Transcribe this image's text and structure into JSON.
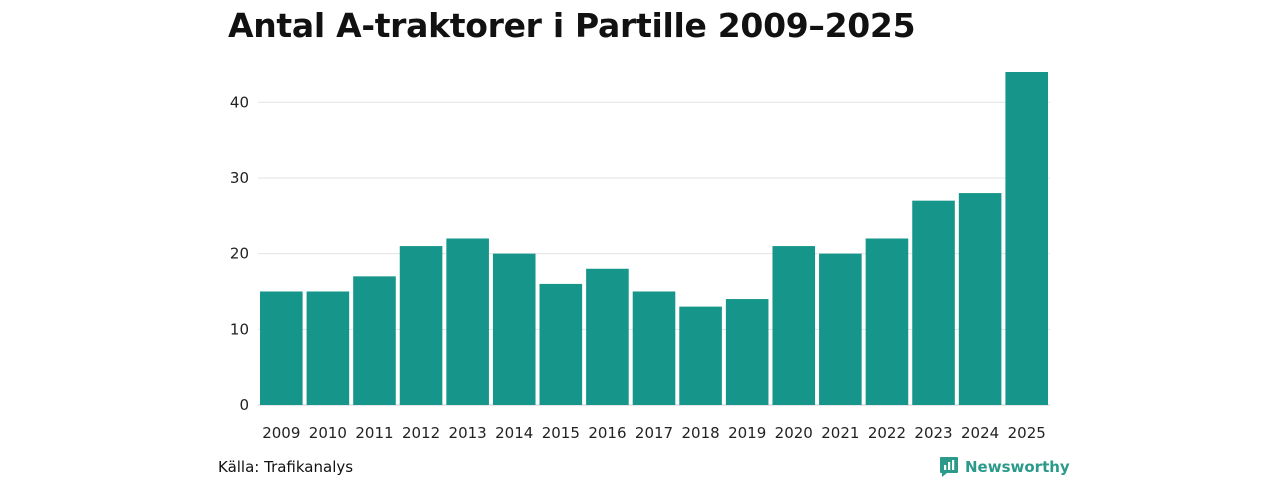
{
  "title": "Antal A-traktorer i Partille 2009–2025",
  "source": "Källa: Trafikanalys",
  "brand": {
    "name": "Newsworthy",
    "icon": "newsworthy-logo-icon",
    "color": "#2b9a8a"
  },
  "chart_data": {
    "type": "bar",
    "title": "Antal A-traktorer i Partille 2009–2025",
    "xlabel": "",
    "ylabel": "",
    "categories": [
      "2009",
      "2010",
      "2011",
      "2012",
      "2013",
      "2014",
      "2015",
      "2016",
      "2017",
      "2018",
      "2019",
      "2020",
      "2021",
      "2022",
      "2023",
      "2024",
      "2025"
    ],
    "values": [
      15,
      15,
      17,
      21,
      22,
      20,
      16,
      18,
      15,
      13,
      14,
      21,
      20,
      22,
      27,
      28,
      44
    ],
    "ylim": [
      0,
      44
    ],
    "yticks": [
      0,
      10,
      20,
      30,
      40
    ],
    "grid": true,
    "bar_color": "#16968a"
  }
}
